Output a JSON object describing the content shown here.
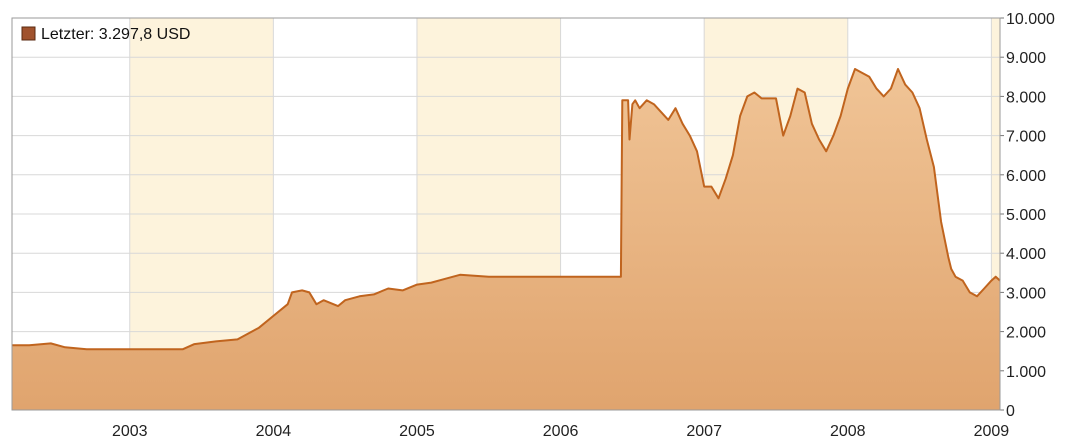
{
  "chart_data": {
    "type": "area",
    "legend": {
      "label": "Letzter: 3.297,8 USD",
      "placement": "top-left",
      "swatch_color": "#a0522d"
    },
    "x_axis": {
      "tick_labels": [
        "2003",
        "2004",
        "2005",
        "2006",
        "2007",
        "2008",
        "2009"
      ],
      "ticks": [
        2003,
        2004,
        2005,
        2006,
        2007,
        2008,
        2009
      ],
      "range": [
        2002.18,
        2009.06
      ]
    },
    "y_axis": {
      "position": "right",
      "tick_labels": [
        "0",
        "1.000",
        "2.000",
        "3.000",
        "4.000",
        "5.000",
        "6.000",
        "7.000",
        "8.000",
        "9.000",
        "10.000"
      ],
      "ticks": [
        0,
        1000,
        2000,
        3000,
        4000,
        5000,
        6000,
        7000,
        8000,
        9000,
        10000
      ],
      "range": [
        0,
        10000
      ]
    },
    "grid": true,
    "highlighted_years": [
      [
        2003,
        2004
      ],
      [
        2005,
        2006
      ],
      [
        2007,
        2008
      ],
      [
        2009,
        2009.06
      ]
    ],
    "colors": {
      "line": "#c0641e",
      "fill_top": "#f0c496",
      "fill_bottom": "#e0a46e",
      "band": "#fdf3dc",
      "grid": "#d8d8d8"
    },
    "series": [
      {
        "x": [
          2002.18,
          2002.3,
          2002.45,
          2002.55,
          2002.7,
          2002.85,
          2003.0,
          2003.2,
          2003.37,
          2003.45,
          2003.6,
          2003.75,
          2003.9,
          2004.0,
          2004.1,
          2004.13,
          2004.2,
          2004.25,
          2004.3,
          2004.35,
          2004.45,
          2004.5,
          2004.6,
          2004.7,
          2004.8,
          2004.9,
          2005.0,
          2005.1,
          2005.2,
          2005.3,
          2005.5,
          2005.8,
          2006.0,
          2006.2,
          2006.42,
          2006.43,
          2006.47,
          2006.48,
          2006.5,
          2006.52,
          2006.55,
          2006.6,
          2006.65,
          2006.7,
          2006.75,
          2006.8,
          2006.85,
          2006.9,
          2006.95,
          2007.0,
          2007.05,
          2007.1,
          2007.15,
          2007.2,
          2007.25,
          2007.3,
          2007.35,
          2007.4,
          2007.45,
          2007.5,
          2007.55,
          2007.6,
          2007.65,
          2007.7,
          2007.75,
          2007.8,
          2007.85,
          2007.9,
          2007.95,
          2008.0,
          2008.05,
          2008.1,
          2008.15,
          2008.2,
          2008.25,
          2008.3,
          2008.35,
          2008.4,
          2008.45,
          2008.5,
          2008.55,
          2008.6,
          2008.65,
          2008.7,
          2008.72,
          2008.75,
          2008.8,
          2008.85,
          2008.9,
          2008.95,
          2009.0,
          2009.03,
          2009.06
        ],
        "y": [
          1650,
          1650,
          1700,
          1600,
          1550,
          1550,
          1550,
          1550,
          1550,
          1680,
          1750,
          1800,
          2100,
          2400,
          2700,
          3000,
          3050,
          3000,
          2700,
          2800,
          2650,
          2800,
          2900,
          2950,
          3100,
          3050,
          3200,
          3250,
          3350,
          3450,
          3400,
          3400,
          3400,
          3400,
          3400,
          7900,
          7900,
          6900,
          7800,
          7900,
          7700,
          7900,
          7800,
          7600,
          7400,
          7700,
          7300,
          7000,
          6600,
          5700,
          5700,
          5400,
          5900,
          6500,
          7500,
          8000,
          8100,
          7950,
          7950,
          7950,
          7000,
          7500,
          8200,
          8100,
          7300,
          6900,
          6600,
          7000,
          7500,
          8200,
          8700,
          8600,
          8500,
          8200,
          8000,
          8200,
          8700,
          8300,
          8100,
          7700,
          6900,
          6200,
          4800,
          3900,
          3600,
          3400,
          3300,
          3000,
          2900,
          3100,
          3300,
          3400,
          3300
        ]
      }
    ]
  }
}
